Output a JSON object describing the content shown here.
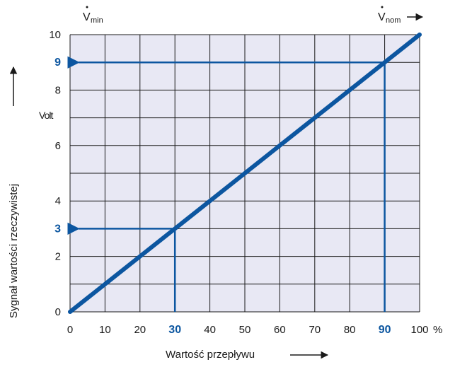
{
  "chart_data": {
    "type": "line",
    "xlabel": "Wartość przepływu",
    "ylabel": "Sygnał wartości rzeczywistej",
    "y_unit": "Volt",
    "x_unit": "%",
    "xlim": [
      0,
      100
    ],
    "ylim": [
      0,
      10
    ],
    "grid": true,
    "x_ticks": [
      {
        "value": 0,
        "label": "0"
      },
      {
        "value": 10,
        "label": "10"
      },
      {
        "value": 20,
        "label": "20"
      },
      {
        "value": 30,
        "label": "30",
        "highlight": true
      },
      {
        "value": 40,
        "label": "40"
      },
      {
        "value": 50,
        "label": "50"
      },
      {
        "value": 60,
        "label": "60"
      },
      {
        "value": 70,
        "label": "70"
      },
      {
        "value": 80,
        "label": "80"
      },
      {
        "value": 90,
        "label": "90",
        "highlight": true
      },
      {
        "value": 100,
        "label": "100"
      }
    ],
    "y_ticks": [
      {
        "value": 0,
        "label": "0"
      },
      {
        "value": 2,
        "label": "2"
      },
      {
        "value": 3,
        "label": "3",
        "highlight": true
      },
      {
        "value": 4,
        "label": "4"
      },
      {
        "value": 6,
        "label": "6"
      },
      {
        "value": 8,
        "label": "8"
      },
      {
        "value": 9,
        "label": "9",
        "highlight": true
      },
      {
        "value": 10,
        "label": "10"
      }
    ],
    "y_gridlines": [
      0,
      1,
      2,
      3,
      4,
      5,
      6,
      7,
      8,
      9,
      10
    ],
    "series": [
      {
        "x": [
          0,
          100
        ],
        "y": [
          0,
          10
        ]
      }
    ],
    "annotations": [
      {
        "x": 30,
        "y": 3
      },
      {
        "x": 90,
        "y": 9
      }
    ],
    "v_min_label": {
      "symbol": "V",
      "sub": "min"
    },
    "v_nom_label": {
      "symbol": "V",
      "sub": "nom"
    }
  },
  "colors": {
    "plot_background": "#e8e8f4",
    "grid": "#1a1a1a",
    "line": "#0c56a0",
    "highlight": "#0c56a0",
    "text": "#1a1a1a"
  }
}
